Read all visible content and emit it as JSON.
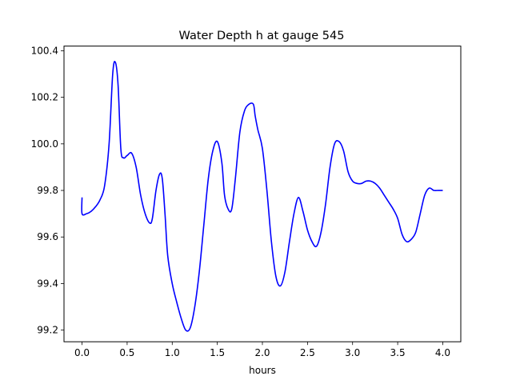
{
  "chart_data": {
    "type": "line",
    "title": "Water Depth h at gauge 545",
    "xlabel": "hours",
    "ylabel": "",
    "xlim": [
      -0.2,
      4.2
    ],
    "ylim": [
      99.15,
      100.42
    ],
    "xticks": [
      0.0,
      0.5,
      1.0,
      1.5,
      2.0,
      2.5,
      3.0,
      3.5,
      4.0
    ],
    "xtick_labels": [
      "0.0",
      "0.5",
      "1.0",
      "1.5",
      "2.0",
      "2.5",
      "3.0",
      "3.5",
      "4.0"
    ],
    "yticks": [
      99.2,
      99.4,
      99.6,
      99.8,
      100.0,
      100.2,
      100.4
    ],
    "ytick_labels": [
      "99.2",
      "99.4",
      "99.6",
      "99.8",
      "100.0",
      "100.2",
      "100.4"
    ],
    "grid": false,
    "legend": "none",
    "series": [
      {
        "color": "#0000ff",
        "x": [
          0.0,
          0.0,
          0.05,
          0.1,
          0.15,
          0.2,
          0.25,
          0.3,
          0.34,
          0.37,
          0.4,
          0.43,
          0.46,
          0.5,
          0.55,
          0.6,
          0.65,
          0.7,
          0.75,
          0.78,
          0.82,
          0.86,
          0.89,
          0.92,
          0.95,
          1.0,
          1.05,
          1.1,
          1.15,
          1.2,
          1.25,
          1.3,
          1.35,
          1.4,
          1.45,
          1.5,
          1.55,
          1.58,
          1.62,
          1.66,
          1.7,
          1.75,
          1.8,
          1.85,
          1.9,
          1.92,
          1.95,
          2.0,
          2.05,
          2.1,
          2.15,
          2.2,
          2.25,
          2.3,
          2.35,
          2.4,
          2.45,
          2.5,
          2.55,
          2.6,
          2.65,
          2.7,
          2.75,
          2.8,
          2.85,
          2.9,
          2.95,
          3.0,
          3.05,
          3.1,
          3.15,
          3.2,
          3.25,
          3.3,
          3.35,
          3.4,
          3.45,
          3.5,
          3.55,
          3.6,
          3.65,
          3.7,
          3.75,
          3.8,
          3.85,
          3.9,
          3.95,
          4.0
        ],
        "y": [
          99.77,
          99.7,
          99.7,
          99.71,
          99.73,
          99.76,
          99.82,
          100.0,
          100.3,
          100.35,
          100.25,
          99.98,
          99.94,
          99.95,
          99.96,
          99.9,
          99.78,
          99.7,
          99.66,
          99.68,
          99.8,
          99.87,
          99.85,
          99.7,
          99.52,
          99.4,
          99.32,
          99.25,
          99.2,
          99.21,
          99.3,
          99.45,
          99.65,
          99.85,
          99.97,
          100.01,
          99.92,
          99.78,
          99.72,
          99.72,
          99.85,
          100.05,
          100.14,
          100.17,
          100.17,
          100.12,
          100.06,
          99.98,
          99.8,
          99.58,
          99.43,
          99.39,
          99.45,
          99.58,
          99.7,
          99.77,
          99.71,
          99.63,
          99.58,
          99.56,
          99.62,
          99.74,
          99.9,
          100.0,
          100.01,
          99.97,
          99.88,
          99.84,
          99.83,
          99.83,
          99.84,
          99.84,
          99.83,
          99.81,
          99.78,
          99.75,
          99.72,
          99.68,
          99.61,
          99.58,
          99.59,
          99.62,
          99.7,
          99.78,
          99.81,
          99.8,
          99.8,
          99.8
        ]
      }
    ]
  }
}
